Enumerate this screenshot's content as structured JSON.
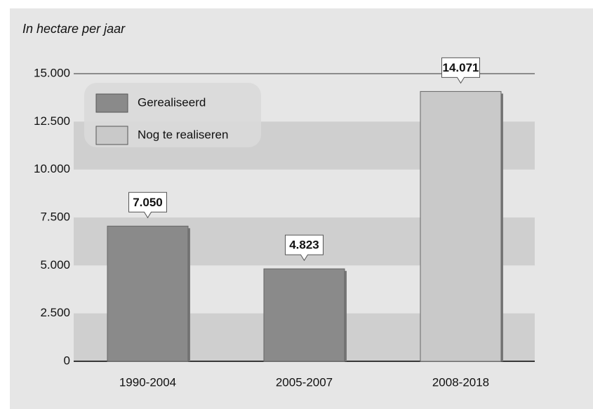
{
  "chart_data": {
    "type": "bar",
    "title": "In hectare per jaar",
    "categories": [
      "1990-2004",
      "2005-2007",
      "2008-2018"
    ],
    "series": [
      {
        "name": "Gerealiseerd",
        "color": "#8a8a8a",
        "values": [
          7050,
          4823,
          null
        ],
        "value_labels": [
          "7.050",
          "4.823",
          null
        ]
      },
      {
        "name": "Nog te realiseren",
        "color": "#c9c9c9",
        "values": [
          null,
          null,
          14071
        ],
        "value_labels": [
          null,
          null,
          "14.071"
        ]
      }
    ],
    "ylim": [
      0,
      15000
    ],
    "yticks": [
      0,
      {
        "value": 2500,
        "label": "2.500"
      },
      {
        "value": 5000,
        "label": "5.000"
      },
      {
        "value": 7500,
        "label": "7.500"
      },
      {
        "value": 10000,
        "label": "10.000"
      },
      {
        "value": 12500,
        "label": "12.500"
      },
      {
        "value": 15000,
        "label": "15.000"
      }
    ],
    "grid": true,
    "legend": "upper left"
  }
}
